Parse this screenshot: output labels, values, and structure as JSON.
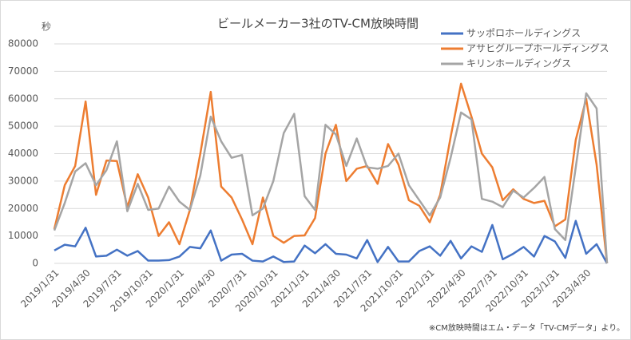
{
  "chart_data": {
    "type": "line",
    "title": "ビールメーカー3社のTV-CM放映時間",
    "y_label": "秒",
    "note": "※CM放映時間はエム・データ「TV-CMデータ」より。",
    "categories": [
      "2019/1/31",
      null,
      null,
      "2019/4/30",
      null,
      null,
      "2019/7/31",
      null,
      null,
      "2019/10/31",
      null,
      null,
      "2020/1/31",
      null,
      null,
      "2020/4/30",
      null,
      null,
      "2020/7/31",
      null,
      null,
      "2020/10/31",
      null,
      null,
      "2021/1/31",
      null,
      null,
      "2021/4/30",
      null,
      null,
      "2021/7/31",
      null,
      null,
      "2021/10/31",
      null,
      null,
      "2022/1/31",
      null,
      null,
      "2022/4/30",
      null,
      null,
      "2022/7/31",
      null,
      null,
      "2022/10/31",
      null,
      null,
      "2023/1/31",
      null,
      null,
      "2023/4/30",
      null,
      null
    ],
    "series": [
      {
        "name": "サッポロホールディングス",
        "color": "#4472c4",
        "values": [
          4700,
          6800,
          6200,
          13000,
          2500,
          2800,
          5000,
          2800,
          4500,
          1000,
          1000,
          1200,
          2500,
          6000,
          5500,
          12000,
          1000,
          3200,
          3500,
          1000,
          700,
          2500,
          500,
          700,
          6500,
          3700,
          7000,
          3500,
          3200,
          1800,
          8500,
          500,
          6000,
          700,
          700,
          4500,
          6200,
          2800,
          8200,
          1800,
          6200,
          4200,
          14000,
          1500,
          3500,
          6000,
          2500,
          10000,
          8000,
          2000,
          15500,
          3500,
          7000,
          0
        ]
      },
      {
        "name": "アサヒグループホールディングス",
        "color": "#ed7d31",
        "values": [
          12500,
          28500,
          35500,
          59000,
          25000,
          37500,
          37300,
          20500,
          32500,
          24000,
          10000,
          15000,
          7000,
          19500,
          40000,
          62500,
          28000,
          24000,
          16000,
          7000,
          24000,
          10000,
          7500,
          10000,
          10200,
          16500,
          40000,
          50500,
          30000,
          34500,
          35500,
          29000,
          43500,
          36000,
          23000,
          21000,
          15000,
          25000,
          46000,
          65500,
          53500,
          40000,
          35000,
          23000,
          27000,
          23500,
          22000,
          22800,
          13500,
          16000,
          45000,
          60000,
          36000,
          0
        ]
      },
      {
        "name": "キリンホールディングス",
        "color": "#a5a5a5",
        "values": [
          12000,
          22000,
          33500,
          36500,
          28500,
          34000,
          44500,
          19000,
          29000,
          19500,
          20000,
          28000,
          22500,
          19500,
          32000,
          53500,
          44500,
          38500,
          39500,
          17500,
          20000,
          30000,
          47500,
          54500,
          24500,
          19500,
          50500,
          47000,
          35500,
          45500,
          35000,
          34500,
          35500,
          40000,
          28500,
          23000,
          17500,
          24000,
          38500,
          55000,
          52500,
          23500,
          22500,
          20500,
          26500,
          24000,
          27500,
          31500,
          12500,
          8500,
          35000,
          62000,
          56500,
          0
        ]
      }
    ],
    "ylim": [
      0,
      80000
    ],
    "yticks": [
      0,
      10000,
      20000,
      30000,
      40000,
      50000,
      60000,
      70000,
      80000
    ],
    "grid": true
  }
}
